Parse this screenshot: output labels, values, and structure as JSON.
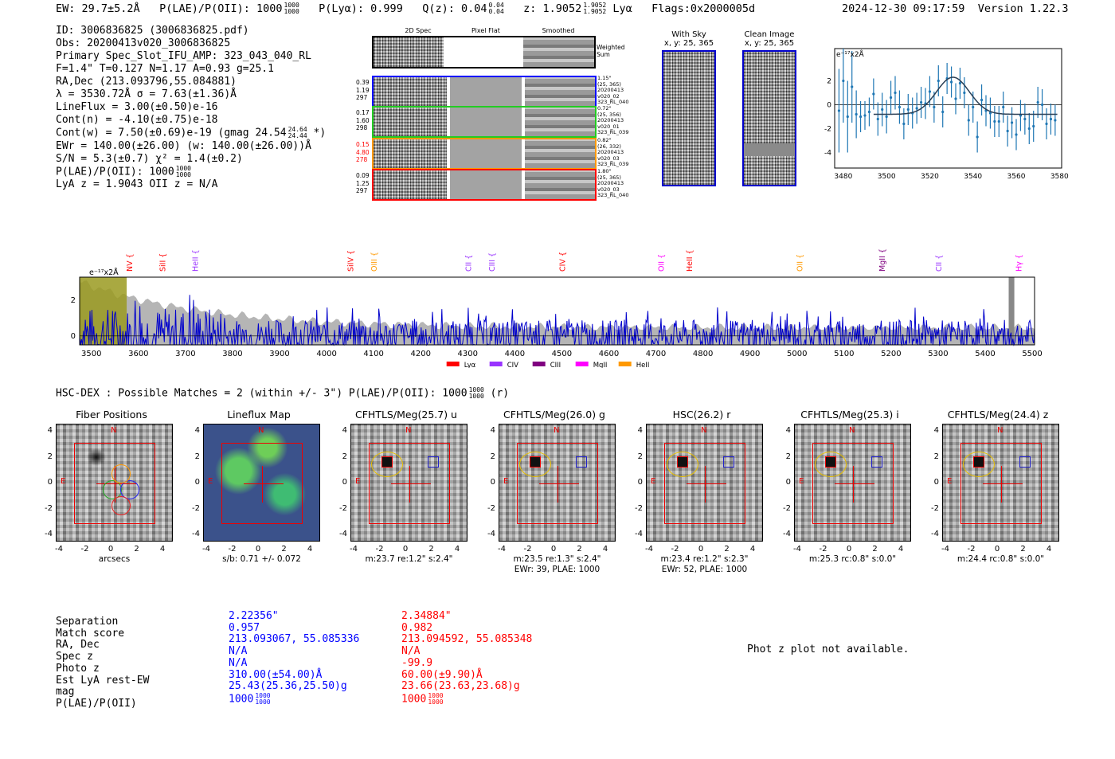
{
  "header": {
    "ew": "EW: 29.7±5.2Å",
    "plae_label": "P(LAE)/P(OII): 1000",
    "plae_hi": "1000",
    "plae_lo": "1000",
    "plya": "P(Lyα): 0.999",
    "q": "Q(z): 0.04",
    "q_hi": "0.04",
    "q_lo": "0.04",
    "z": "z: 1.9052",
    "z_hi": "1.9052",
    "z_lo": "1.9052",
    "z_line": "Lyα",
    "flags": "Flags:0x2000005d",
    "timestamp": "2024-12-30 09:17:59",
    "version": "Version 1.22.3"
  },
  "info": {
    "lines": [
      "ID: 3006836825 (3006836825.pdf)",
      "Obs: 20200413v020_3006836825",
      "Primary Spec_Slot_IFU_AMP: 323_043_040_RL",
      "F=1.4\"  T=0.127  N=1.17  A=0.93  g=25.1",
      "RA,Dec (213.093796,55.084881)",
      "λ = 3530.72Å  σ = 7.63(±1.36)Å",
      "LineFlux = 3.00(±0.50)e-16",
      "Cont(n) = -4.10(±0.75)e-18",
      "Cont(w) = 7.50(±0.69)e-19 (gmag 24.54",
      "EWr = 140.00(±26.00) (w: 140.00(±26.00))Å",
      "S/N = 5.3(±0.7)  χ² = 1.4(±0.2)",
      "P(LAE)/P(OII): 1000",
      "LyA z = 1.9043  OII z = N/A"
    ],
    "gmag_hi": "24.64",
    "gmag_lo": "24.44",
    "gmag_tail": "*)",
    "plae_hi": "1000",
    "plae_lo": "1000"
  },
  "cutouts": {
    "col_titles": [
      "2D Spec",
      "Pixel Flat",
      "Smoothed"
    ],
    "weighted_sum": "Weighted Sum",
    "rows": [
      {
        "left": [
          "0.39",
          "1.19",
          "297"
        ],
        "left_color": "#000000",
        "border": "#0000ff",
        "right": [
          "1.15\"",
          "(25, 365)",
          "20200413",
          "v020_02",
          "323_RL_040"
        ]
      },
      {
        "left": [
          "0.17",
          "1.60",
          "298"
        ],
        "left_color": "#000000",
        "border": "#22cc22",
        "right": [
          "0.72\"",
          "(25, 356)",
          "20200413",
          "v020_01",
          "323_RL_039"
        ]
      },
      {
        "left": [
          "0.15",
          "4.80",
          "278"
        ],
        "left_color": "#ff0000",
        "border": "#ff9900",
        "right": [
          "0.82\"",
          "(26, 332)",
          "20200413",
          "v020_03",
          "323_RL_039"
        ]
      },
      {
        "left": [
          "0.09",
          "1.25",
          "297"
        ],
        "left_color": "#000000",
        "border": "#ff0000",
        "right": [
          "1.80\"",
          "(25, 365)",
          "20200413",
          "v020_03",
          "323_RL_040"
        ]
      }
    ],
    "with_sky_title": "With Sky",
    "with_sky_xy": "x, y: 25, 365",
    "clean_title": "Clean Image",
    "clean_xy": "x, y: 25, 365"
  },
  "zoom_plot": {
    "ylabel": "e⁻¹⁷x2Å",
    "xticks": [
      "3480",
      "3500",
      "3520",
      "3540",
      "3560",
      "3580"
    ],
    "yticks": [
      "2",
      "0",
      "-2",
      "-4"
    ],
    "x": [
      3478,
      3480,
      3482,
      3484,
      3486,
      3488,
      3490,
      3492,
      3494,
      3496,
      3498,
      3500,
      3502,
      3504,
      3506,
      3508,
      3510,
      3512,
      3514,
      3516,
      3518,
      3520,
      3522,
      3524,
      3526,
      3528,
      3530,
      3532,
      3534,
      3536,
      3538,
      3540,
      3542,
      3544,
      3546,
      3548,
      3550,
      3552,
      3554,
      3556,
      3558,
      3560,
      3562,
      3564,
      3566,
      3568,
      3570,
      3572,
      3574,
      3576,
      3578
    ],
    "y": [
      -0.5,
      2.0,
      -1.0,
      1.5,
      -0.8,
      -1.0,
      -0.9,
      -0.6,
      0.9,
      -1.2,
      -0.4,
      -1.0,
      0.6,
      1.0,
      -0.2,
      -1.6,
      -0.4,
      -0.7,
      -0.3,
      0.2,
      0.1,
      1.1,
      -0.2,
      2.0,
      -0.6,
      2.2,
      1.9,
      0.5,
      1.8,
      1.0,
      -1.3,
      -0.2,
      -2.7,
      0.4,
      -0.5,
      -0.7,
      -1.4,
      -1.4,
      -0.2,
      -2.2,
      -1.5,
      -2.5,
      -0.9,
      -1.2,
      -2.0,
      -1.8,
      0.2,
      0.0,
      -1.6,
      -1.2,
      -1.3
    ],
    "err": [
      3.5,
      3.5,
      3.0,
      3.0,
      2.0,
      1.3,
      1.2,
      1.2,
      1.3,
      1.4,
      1.4,
      1.4,
      1.4,
      1.4,
      1.4,
      1.3,
      1.3,
      1.3,
      1.3,
      1.3,
      1.3,
      1.3,
      1.3,
      1.3,
      1.3,
      1.3,
      1.3,
      1.3,
      1.3,
      1.3,
      1.3,
      1.3,
      1.3,
      1.3,
      1.3,
      1.3,
      1.3,
      1.3,
      1.3,
      1.3,
      1.3,
      1.3,
      1.3,
      1.3,
      1.3,
      1.3,
      1.3,
      1.3,
      1.3,
      1.3,
      1.3
    ],
    "fit": {
      "center": 3530.72,
      "sigma": 7.63,
      "amp": 3.1,
      "base": -0.8
    },
    "xlim": [
      3476,
      3581
    ],
    "ylim": [
      -5.3,
      4.7
    ]
  },
  "full_spectrum": {
    "ylabel": "e⁻¹⁷x2Å",
    "xticks": [
      "3500",
      "3600",
      "3700",
      "3800",
      "3900",
      "4000",
      "4100",
      "4200",
      "4300",
      "4400",
      "4500",
      "4600",
      "4700",
      "4800",
      "4900",
      "5000",
      "5100",
      "5200",
      "5300",
      "5400",
      "5500"
    ],
    "yticks": [
      "2",
      "0"
    ],
    "lines": [
      {
        "name": "NV",
        "wave": 3580,
        "color": "#ff0000"
      },
      {
        "name": "SiII",
        "wave": 3650,
        "color": "#ff0000"
      },
      {
        "name": "HeII",
        "wave": 3720,
        "color": "#9933ff"
      },
      {
        "name": "SiIV",
        "wave": 4050,
        "color": "#ff0000"
      },
      {
        "name": "OIII",
        "wave": 4100,
        "color": "#ff9900"
      },
      {
        "name": "CII",
        "wave": 4300,
        "color": "#9933ff"
      },
      {
        "name": "CIII",
        "wave": 4350,
        "color": "#9933ff"
      },
      {
        "name": "CIV",
        "wave": 4500,
        "color": "#ff0000"
      },
      {
        "name": "OII",
        "wave": 4710,
        "color": "#ff00ff"
      },
      {
        "name": "HeII",
        "wave": 4770,
        "color": "#ff0000"
      },
      {
        "name": "OII",
        "wave": 5005,
        "color": "#ff9900"
      },
      {
        "name": "MgII",
        "wave": 5180,
        "color": "#800080"
      },
      {
        "name": "CII",
        "wave": 5300,
        "color": "#9933ff"
      },
      {
        "name": "Hγ",
        "wave": 5470,
        "color": "#ff00ff"
      }
    ],
    "legend": [
      {
        "name": "Lyα",
        "color": "#ff0000"
      },
      {
        "name": "CIV",
        "color": "#9933ff"
      },
      {
        "name": "CIII",
        "color": "#800080"
      },
      {
        "name": "MgII",
        "color": "#ff00ff"
      },
      {
        "name": "HeII",
        "color": "#ff9900"
      }
    ],
    "xlim": [
      3475,
      5505
    ],
    "ylim": [
      -0.5,
      3.3
    ]
  },
  "hsc": {
    "heading": "HSC-DEX : Possible Matches = 2 (within +/- 3\")  P(LAE)/P(OII): 1000",
    "heading_hi": "1000",
    "heading_lo": "1000",
    "heading_tail": "(r)",
    "panels": [
      {
        "title": "Fiber Positions",
        "caption": "arcsecs",
        "caption2": ""
      },
      {
        "title": "Lineflux Map",
        "caption": "s/b: 0.71 +/- 0.072",
        "caption2": ""
      },
      {
        "title": "CFHTLS/Meg(25.7) u",
        "caption": "m:23.7  re:1.2\"  s:2.4\"",
        "caption2": ""
      },
      {
        "title": "CFHTLS/Meg(26.0) g",
        "caption": "m:23.5  re:1.3\"  s:2.4\"",
        "caption2": "EWr: 39, PLAE: 1000"
      },
      {
        "title": "HSC(26.2) r",
        "caption": "m:23.4  re:1.2\"  s:2.3\"",
        "caption2": "EWr: 52, PLAE: 1000"
      },
      {
        "title": "CFHTLS/Meg(25.3) i",
        "caption": "m:25.3 rc:0.8\"  s:0.0\"",
        "caption2": ""
      },
      {
        "title": "CFHTLS/Meg(24.4) z",
        "caption": "m:24.4 rc:0.8\"  s:0.0\"",
        "caption2": ""
      }
    ],
    "axis_ticks": [
      "4",
      "2",
      "0",
      "-2",
      "-4"
    ],
    "x_ticks": [
      "-4",
      "-2",
      "0",
      "2",
      "4"
    ],
    "north": "N",
    "east": "E"
  },
  "matches": {
    "labels": [
      "Separation",
      "Match score",
      "RA, Dec",
      "Spec z",
      "Photo z",
      "Est LyA rest-EW",
      "mag",
      "P(LAE)/P(OII)"
    ],
    "match1": {
      "color": "#0000ff",
      "values": [
        "2.22356\"",
        "0.957",
        "213.093067, 55.085336",
        "N/A",
        "N/A",
        "310.00(±54.00)Å",
        "25.43(25.36,25.50)g",
        "1000"
      ],
      "plae_hi": "1000",
      "plae_lo": "1000"
    },
    "match2": {
      "color": "#ff0000",
      "values": [
        "2.34884\"",
        "0.982",
        "213.094592, 55.085348",
        "N/A",
        "-99.9",
        "60.00(±9.90)Å",
        "23.66(23.63,23.68)g",
        "1000"
      ],
      "plae_hi": "1000",
      "plae_lo": "1000"
    },
    "photz_note": "Phot z plot not available."
  }
}
